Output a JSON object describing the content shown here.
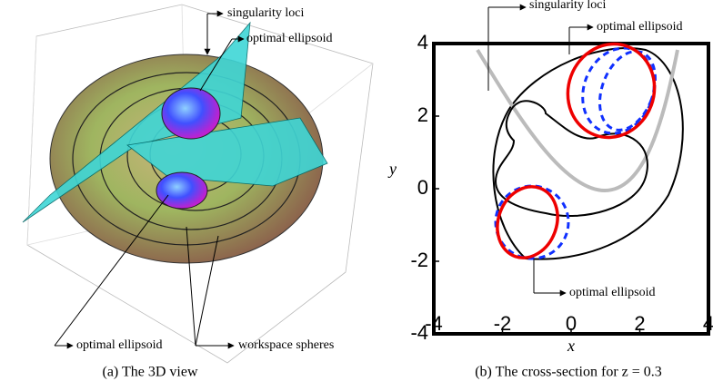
{
  "left": {
    "annotations": [
      "singularity loci",
      "optimal ellipsoid",
      "optimal ellipsoid",
      "workspace spheres"
    ],
    "caption": "(a) The 3D view"
  },
  "right": {
    "xlim": [
      -4,
      4
    ],
    "ylim": [
      -4,
      4
    ],
    "xticks": [
      -4,
      -2,
      0,
      2,
      4
    ],
    "yticks": [
      -4,
      -2,
      0,
      2,
      4
    ],
    "xlabel": "x",
    "ylabel": "y",
    "annotations": [
      "singularity loci",
      "optimal ellipsoid",
      "optimal ellipsoid"
    ],
    "caption": "(b) The cross-section for z = 0.3"
  }
}
